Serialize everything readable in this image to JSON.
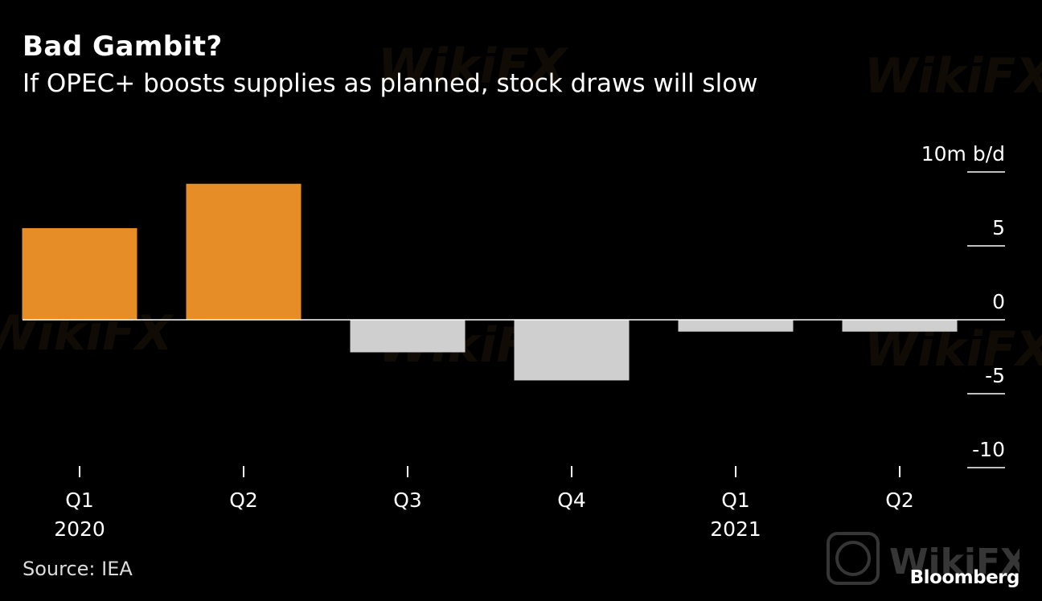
{
  "header": {
    "title": "Bad Gambit?",
    "subtitle": "If OPEC+ boosts supplies as planned, stock draws will slow"
  },
  "footer": {
    "source": "Source: IEA",
    "brand": "Bloomberg"
  },
  "watermark": {
    "text": "WikiFX"
  },
  "colors": {
    "background": "#000000",
    "positive_bar": "#e68d28",
    "negative_bar": "#cfcfcf",
    "text": "#ffffff",
    "zero_line": "#ffffff"
  },
  "chart_data": {
    "type": "bar",
    "title": "Bad Gambit?",
    "subtitle": "If OPEC+ boosts supplies as planned, stock draws will slow",
    "unit_label": "m b/d",
    "categories": [
      "Q1",
      "Q2",
      "Q3",
      "Q4",
      "Q1",
      "Q2"
    ],
    "year_labels": [
      "2020",
      "",
      "",
      "",
      "2021",
      ""
    ],
    "values": [
      6.2,
      9.2,
      -2.2,
      -4.1,
      -0.8,
      -0.8
    ],
    "ylim": [
      -10,
      10
    ],
    "yticks": [
      10,
      5,
      0,
      -5,
      -10
    ],
    "ytick_labels": [
      "10m b/d",
      "5",
      "0",
      "-5",
      "-10"
    ],
    "axis_position": "right",
    "source": "Source: IEA"
  }
}
